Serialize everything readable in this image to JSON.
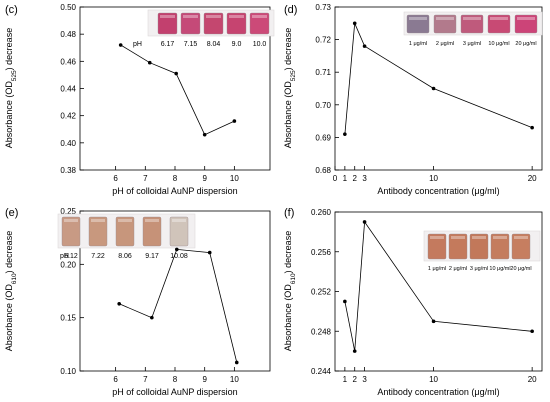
{
  "chart_data": [
    {
      "panel_label": "(c)",
      "type": "line",
      "x": [
        6.17,
        7.15,
        8.04,
        9.0,
        10.0
      ],
      "values": [
        0.472,
        0.459,
        0.451,
        0.406,
        0.416
      ],
      "xlabel": "pH of colloidal AuNP dispersion",
      "ylabel_parts": [
        "Absorbance (OD",
        "525",
        ") decrease"
      ],
      "xlim": [
        4.8,
        11.2
      ],
      "ylim": [
        0.38,
        0.5
      ],
      "xticks": [
        "6",
        "7",
        "8",
        "9",
        "10"
      ],
      "yticks": [
        "0.38",
        "0.40",
        "0.42",
        "0.44",
        "0.46",
        "0.48",
        "0.50"
      ],
      "inset": {
        "prefix": "pH",
        "labels": [
          "6.17",
          "7.15",
          "8.04",
          "9.0",
          "10.0"
        ],
        "colors": [
          "#c2406e",
          "#c54a78",
          "#c4476f",
          "#c64470",
          "#cc4a78"
        ]
      }
    },
    {
      "panel_label": "(d)",
      "type": "line",
      "x": [
        1,
        2,
        3,
        10,
        20
      ],
      "values": [
        0.691,
        0.725,
        0.718,
        0.705,
        0.693
      ],
      "xlabel": "Antibody concentration (μg/ml)",
      "ylabel_parts": [
        "Absorbance (OD",
        "525",
        ") decrease"
      ],
      "xlim": [
        0,
        21
      ],
      "ylim": [
        0.68,
        0.73
      ],
      "xticks": [
        "0",
        "1",
        "2",
        "3",
        "10",
        "20"
      ],
      "yticks": [
        "0.68",
        "0.69",
        "0.70",
        "0.71",
        "0.72",
        "0.73"
      ],
      "inset": {
        "prefix": "",
        "labels": [
          "1 μg/ml",
          "2 μg/ml",
          "3 μg/ml",
          "10 μg/ml",
          "20 μg/ml"
        ],
        "colors": [
          "#8a7a92",
          "#b27a8c",
          "#bf5a7c",
          "#c84a74",
          "#cc4478"
        ]
      }
    },
    {
      "panel_label": "(e)",
      "type": "line",
      "x": [
        6.12,
        7.22,
        8.06,
        9.17,
        10.08
      ],
      "values": [
        0.163,
        0.15,
        0.214,
        0.211,
        0.108
      ],
      "xlabel": "pH of colloidal AuNP dispersion",
      "ylabel_parts": [
        "Absorbance (OD",
        "610",
        ") decrease"
      ],
      "xlim": [
        4.8,
        11.2
      ],
      "ylim": [
        0.1,
        0.25
      ],
      "xticks": [
        "6",
        "7",
        "8",
        "9",
        "10"
      ],
      "yticks": [
        "0.10",
        "0.15",
        "0.20",
        "0.25"
      ],
      "inset": {
        "prefix": "pH",
        "labels": [
          "6.12",
          "7.22",
          "8.06",
          "9.17",
          "10.08"
        ],
        "colors": [
          "#c89a84",
          "#c8987e",
          "#c7967c",
          "#c69278",
          "#d0c4ba"
        ]
      }
    },
    {
      "panel_label": "(f)",
      "type": "line",
      "x": [
        1,
        2,
        3,
        10,
        20
      ],
      "values": [
        0.251,
        0.246,
        0.259,
        0.249,
        0.248
      ],
      "xlabel": "Antibody concentration (μg/ml)",
      "ylabel_parts": [
        "Absorbance (OD",
        "610",
        ") decrease"
      ],
      "xlim": [
        0,
        21
      ],
      "ylim": [
        0.244,
        0.26
      ],
      "xticks": [
        "1",
        "2",
        "3",
        "10",
        "20"
      ],
      "yticks": [
        "0.244",
        "0.248",
        "0.252",
        "0.256",
        "0.260"
      ],
      "inset": {
        "prefix": "",
        "labels": [
          "1 μg/ml",
          "2 μg/ml",
          "3 μg/ml",
          "10 μg/ml",
          "20 μg/ml"
        ],
        "colors": [
          "#c47a5e",
          "#c47a5c",
          "#c2785a",
          "#c47c5e",
          "#c67e60"
        ]
      }
    }
  ]
}
